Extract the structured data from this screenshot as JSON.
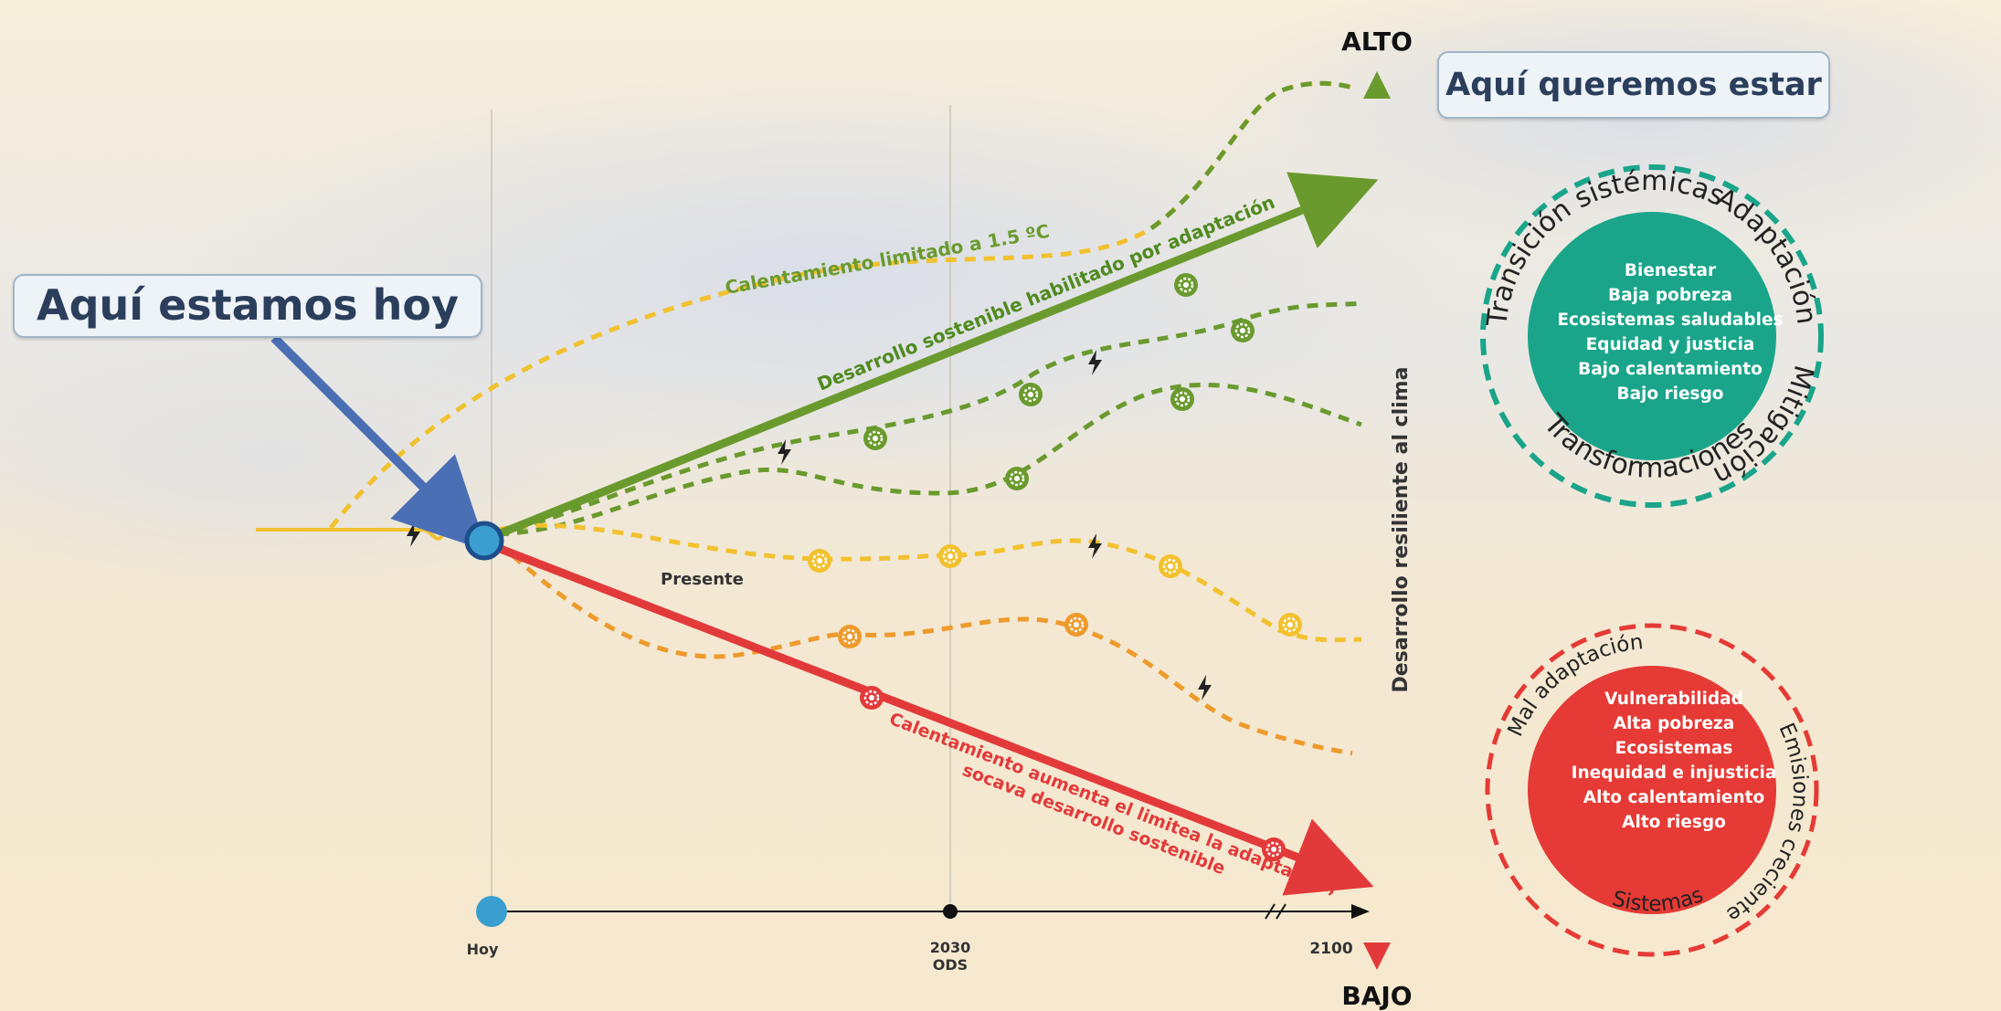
{
  "callouts": {
    "today": "Aquí estamos hoy",
    "goal": "Aquí queremos estar"
  },
  "axis": {
    "vertical_top": "ALTO",
    "vertical_bottom": "BAJO",
    "vertical_label": "Desarrollo resiliente al clima",
    "timeline_start": "Hoy",
    "timeline_mid": "2030",
    "timeline_mid_sub": "ODS",
    "timeline_end": "2100"
  },
  "pathways": {
    "limited_warming": "Calentamiento limitado a 1.5 ºC",
    "sustainable_dev": "Desarrollo sostenible habilitado por adaptación",
    "present": "Presente",
    "warming_line1": "Calentamiento aumenta el limitea la adaptación,",
    "warming_line2": "socava desarrollo sostenible"
  },
  "green_circle": {
    "ring_words": [
      "Transición sistémicas",
      "Adaptación",
      "Mitigación",
      "Transformaciones"
    ],
    "items": [
      "Bienestar",
      "Baja pobreza",
      "Ecosistemas saludables",
      "Equidad y justicia",
      "Bajo calentamiento",
      "Bajo riesgo"
    ]
  },
  "red_circle": {
    "ring_words": [
      "Mal adaptación",
      "Emisiones crecientes",
      "Sistemas"
    ],
    "items": [
      "Vulnerabilidad",
      "Alta pobreza",
      "Ecosistemas",
      "Inequidad e injusticia",
      "Alto calentamiento",
      "Alto riesgo"
    ]
  },
  "colors": {
    "green": "#6a9a2e",
    "yellow": "#f2c12e",
    "orange": "#ee9a2c",
    "red": "#e23a3a",
    "blue_arrow": "#4a6fb5",
    "teal_circle": "#1aa58a",
    "red_circle": "#e53a35",
    "node_blue": "#3a9fd0"
  }
}
